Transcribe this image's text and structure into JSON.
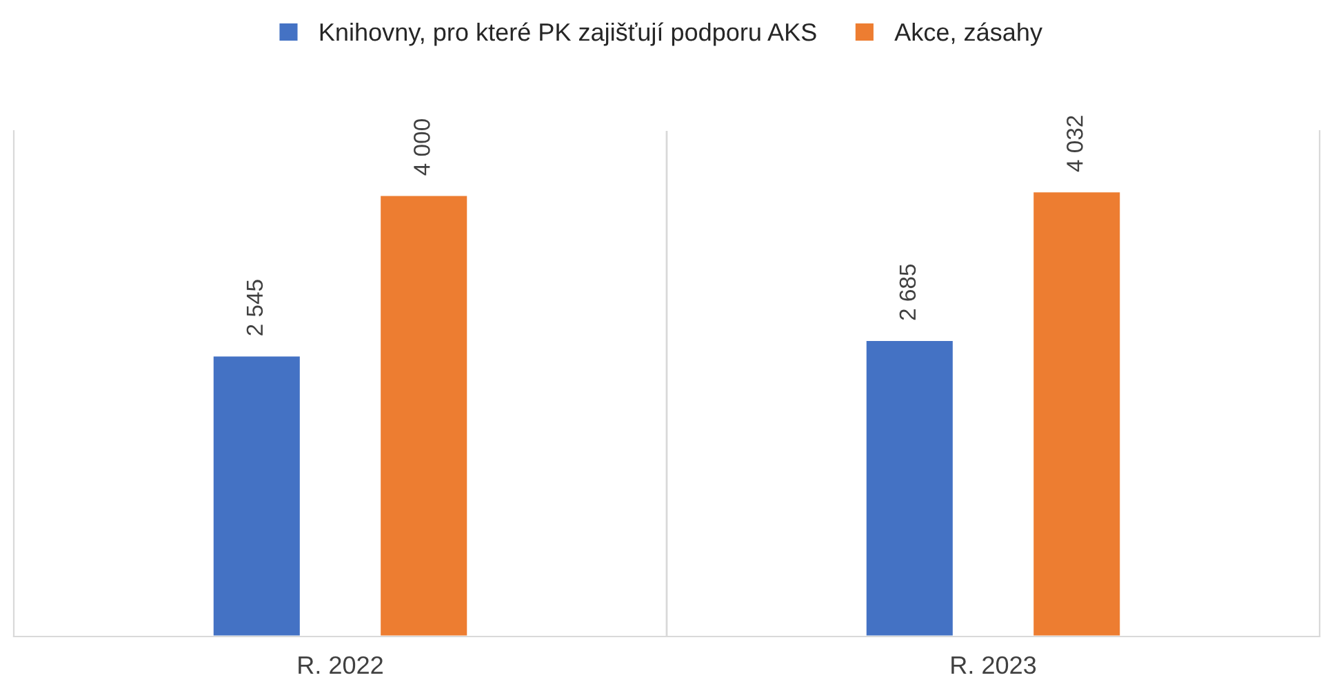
{
  "chart_data": {
    "type": "bar",
    "categories": [
      "R. 2022",
      "R. 2023"
    ],
    "series": [
      {
        "name": "Knihovny, pro které PK zajišťují podporu AKS",
        "color": "#4472c4",
        "values": [
          2545,
          2685
        ],
        "value_labels": [
          "2 545",
          "2 685"
        ]
      },
      {
        "name": "Akce, zásahy",
        "color": "#ed7d31",
        "values": [
          4000,
          4032
        ],
        "value_labels": [
          "4 000",
          "4 032"
        ]
      }
    ],
    "legend": "top",
    "grid": false
  }
}
